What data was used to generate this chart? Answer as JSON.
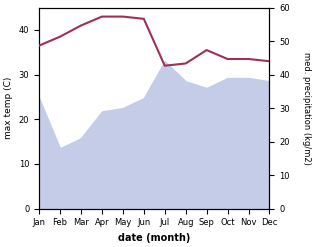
{
  "months": [
    "Jan",
    "Feb",
    "Mar",
    "Apr",
    "May",
    "Jun",
    "Jul",
    "Aug",
    "Sep",
    "Oct",
    "Nov",
    "Dec"
  ],
  "max_temp": [
    36.5,
    38.5,
    41.0,
    43.0,
    43.0,
    42.5,
    32.0,
    32.5,
    35.5,
    33.5,
    33.5,
    33.0
  ],
  "precipitation": [
    33,
    18,
    21,
    29,
    30,
    33,
    44,
    38,
    36,
    39,
    39,
    38
  ],
  "temp_color": "#a03050",
  "precip_fill_color": "#c5cce8",
  "xlabel": "date (month)",
  "ylabel_left": "max temp (C)",
  "ylabel_right": "med. precipitation (kg/m2)",
  "ylim_left": [
    0,
    45
  ],
  "ylim_right": [
    0,
    60
  ],
  "yticks_left": [
    0,
    10,
    20,
    30,
    40
  ],
  "yticks_right": [
    0,
    10,
    20,
    30,
    40,
    50,
    60
  ],
  "figsize": [
    3.18,
    2.47
  ],
  "dpi": 100
}
